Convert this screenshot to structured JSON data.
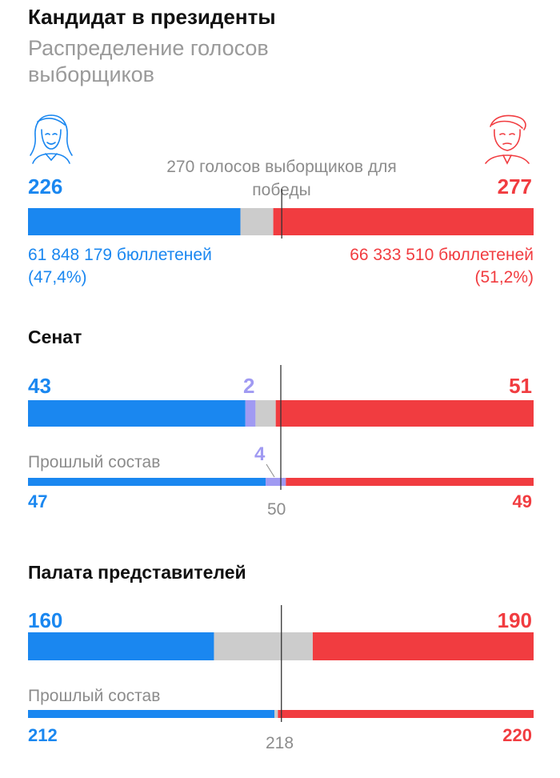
{
  "title": "Кандидат в президенты",
  "subtitle": "Распределение голосов выборщиков",
  "president": {
    "threshold_label": "270 голосов выборщиков для победы",
    "dem_votes": "226",
    "rep_votes": "277",
    "dem_ballots": "61 848 179 бюллетеней",
    "dem_share": "(47,4%)",
    "rep_ballots": "66 333 510 бюллетеней",
    "rep_share": "(51,2%)"
  },
  "senate": {
    "title": "Сенат",
    "dem": "43",
    "other": "2",
    "rep": "51",
    "prev_label": "Прошлый состав",
    "prev_other": "4",
    "prev_dem": "47",
    "prev_rep": "49",
    "threshold": "50"
  },
  "house": {
    "title": "Палата представителей",
    "dem": "160",
    "rep": "190",
    "prev_label": "Прошлый состав",
    "prev_dem": "212",
    "prev_rep": "220",
    "threshold": "218"
  },
  "colors": {
    "democrat": "#1a87f0",
    "republican": "#f13c40",
    "independent": "#a09af2",
    "undecided": "#cccccc",
    "threshold_line": "#333333"
  },
  "icons": [
    "democrat-portrait-icon",
    "republican-portrait-icon"
  ],
  "chart_data": [
    {
      "type": "bar",
      "stacked": true,
      "orientation": "horizontal",
      "name": "president-electoral",
      "total": 538,
      "threshold": 270,
      "series": [
        {
          "key": "dem",
          "values": [
            226
          ]
        },
        {
          "key": "undecided",
          "values": [
            35
          ]
        },
        {
          "key": "rep",
          "values": [
            277
          ]
        }
      ]
    },
    {
      "type": "bar",
      "stacked": true,
      "orientation": "horizontal",
      "name": "senate-current",
      "total": 100,
      "threshold": 50,
      "series": [
        {
          "key": "dem",
          "values": [
            43
          ]
        },
        {
          "key": "independent",
          "values": [
            2
          ]
        },
        {
          "key": "undecided",
          "values": [
            4
          ]
        },
        {
          "key": "rep",
          "values": [
            51
          ]
        }
      ]
    },
    {
      "type": "bar",
      "stacked": true,
      "orientation": "horizontal",
      "name": "senate-previous",
      "total": 100,
      "threshold": 50,
      "series": [
        {
          "key": "dem",
          "values": [
            47
          ]
        },
        {
          "key": "independent",
          "values": [
            4
          ]
        },
        {
          "key": "rep",
          "values": [
            49
          ]
        }
      ]
    },
    {
      "type": "bar",
      "stacked": true,
      "orientation": "horizontal",
      "name": "house-current",
      "total": 435,
      "threshold": 218,
      "series": [
        {
          "key": "dem",
          "values": [
            160
          ]
        },
        {
          "key": "undecided",
          "values": [
            85
          ]
        },
        {
          "key": "rep",
          "values": [
            190
          ]
        }
      ]
    },
    {
      "type": "bar",
      "stacked": true,
      "orientation": "horizontal",
      "name": "house-previous",
      "total": 435,
      "threshold": 218,
      "series": [
        {
          "key": "dem",
          "values": [
            212
          ]
        },
        {
          "key": "undecided",
          "values": [
            3
          ]
        },
        {
          "key": "rep",
          "values": [
            220
          ]
        }
      ]
    }
  ]
}
